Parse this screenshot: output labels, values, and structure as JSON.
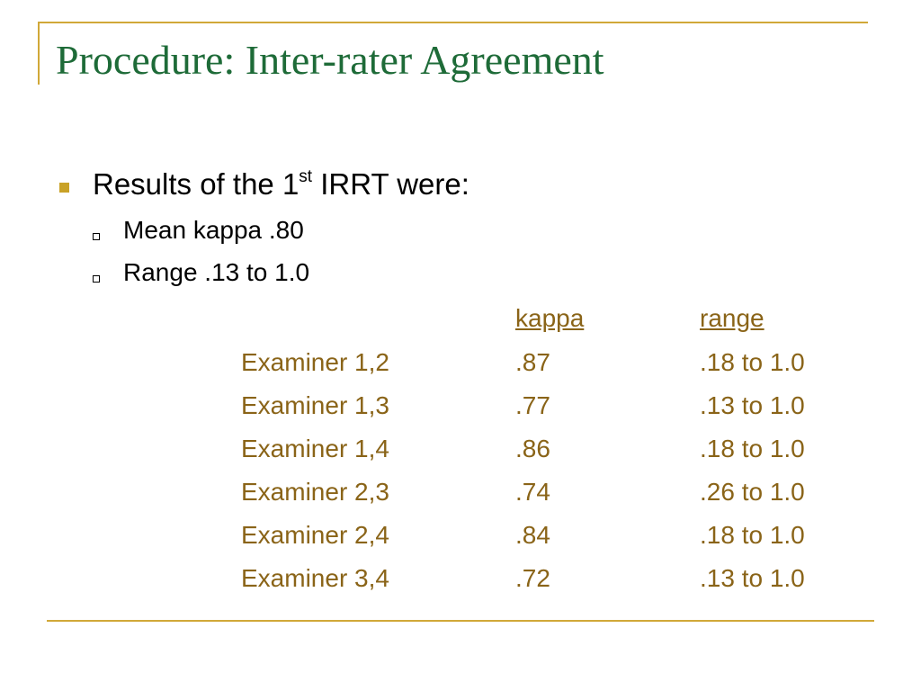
{
  "title": "Procedure: Inter-rater Agreement",
  "bullets": [
    {
      "text_before": "Results of the 1",
      "superscript": "st",
      "text_after": " IRRT were:",
      "subitems": [
        "Mean kappa .80",
        "Range .13 to 1.0"
      ]
    }
  ],
  "table": {
    "header": [
      "kappa",
      "range"
    ],
    "rows": [
      [
        "Examiner 1,2",
        ".87",
        ".18 to 1.0"
      ],
      [
        "Examiner 1,3",
        ".77",
        ".13 to 1.0"
      ],
      [
        "Examiner 1,4",
        ".86",
        ".18 to 1.0"
      ],
      [
        "Examiner 2,3",
        ".74",
        ".26 to 1.0"
      ],
      [
        "Examiner 2,4",
        ".84",
        ".18 to 1.0"
      ],
      [
        "Examiner 3,4",
        ".72",
        ".13 to 1.0"
      ]
    ]
  }
}
